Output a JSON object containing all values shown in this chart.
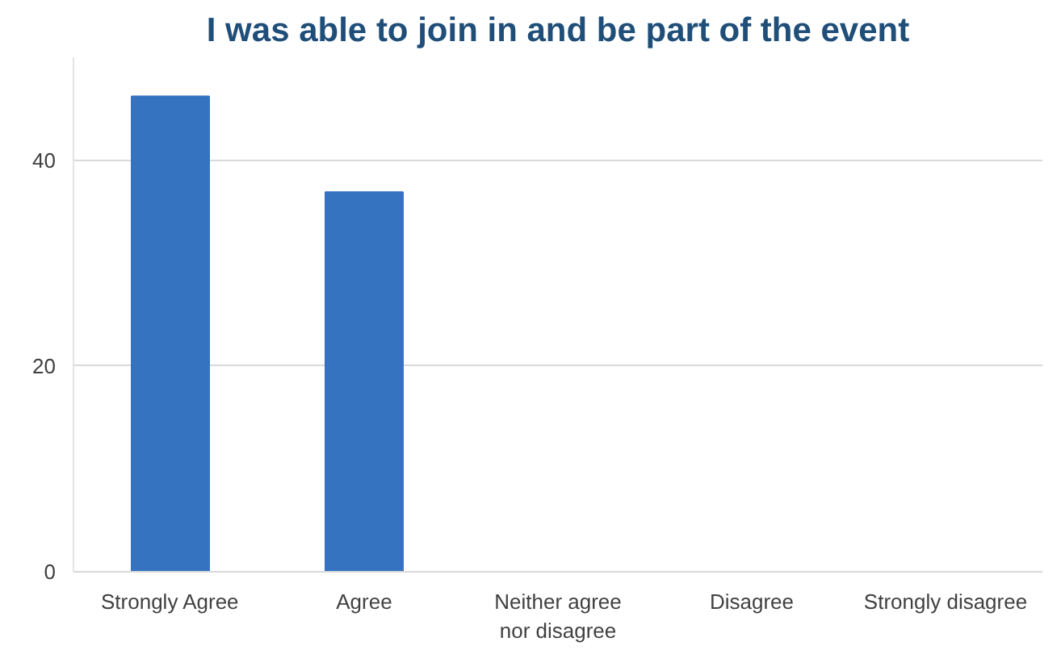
{
  "chart_data": {
    "type": "bar",
    "title": "I was able to join in and be part of the event",
    "categories": [
      "Strongly Agree",
      "Agree",
      "Neither agree nor disagree",
      "Disagree",
      "Strongly disagree"
    ],
    "values": [
      46.2,
      36.9,
      0,
      0,
      0
    ],
    "color": "#3573c0",
    "ylim": [
      0,
      50
    ],
    "yticks": [
      0,
      20,
      40
    ],
    "grid": "y"
  }
}
